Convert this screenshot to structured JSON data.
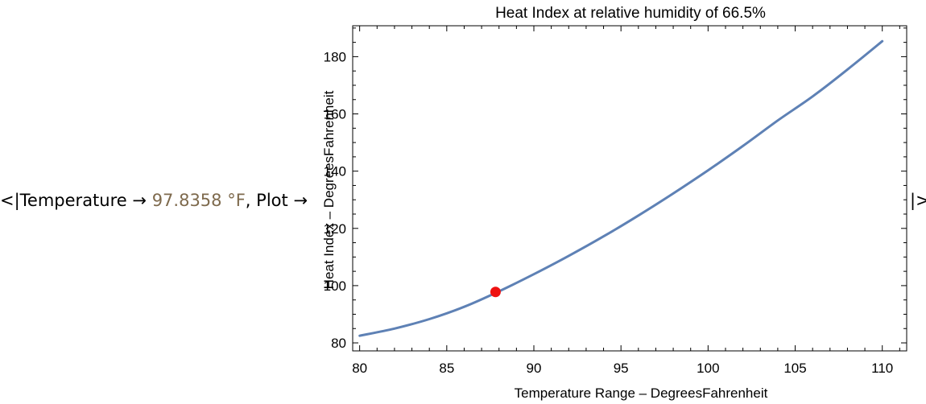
{
  "association": {
    "open": "<|",
    "key_temperature": "Temperature",
    "arrow": "→",
    "temperature_value": "97.8358 °F",
    "separator": ",",
    "key_plot": "Plot",
    "close": "|>"
  },
  "colors": {
    "quantity_text": "#7e6a4d",
    "curve": "#5e81b5",
    "marker": "#ee1111",
    "frame": "#000000"
  },
  "chart_data": {
    "type": "line",
    "title": "Heat Index at relative humidity of 66.5%",
    "xlabel": "Temperature Range – DegreesFahrenheit",
    "ylabel": "Heat Index – DegreesFahrenheit",
    "xlim": [
      79.6,
      111.4
    ],
    "ylim": [
      77.2,
      190.8
    ],
    "xticks": [
      80,
      85,
      90,
      95,
      100,
      105,
      110
    ],
    "yticks": [
      80,
      100,
      120,
      140,
      160,
      180
    ],
    "grid": false,
    "series": [
      {
        "x": [
          80,
          82,
          84,
          86,
          88,
          90,
          92,
          94,
          96,
          98,
          100,
          102,
          104,
          106,
          108,
          110
        ],
        "values": [
          82.5,
          85.0,
          88.3,
          92.6,
          98.0,
          104.0,
          110.4,
          117.2,
          124.5,
          132.2,
          140.3,
          148.8,
          157.7,
          166.1,
          175.5,
          185.4
        ]
      }
    ],
    "highlight_point": {
      "x": 87.8,
      "y": 97.8
    }
  }
}
